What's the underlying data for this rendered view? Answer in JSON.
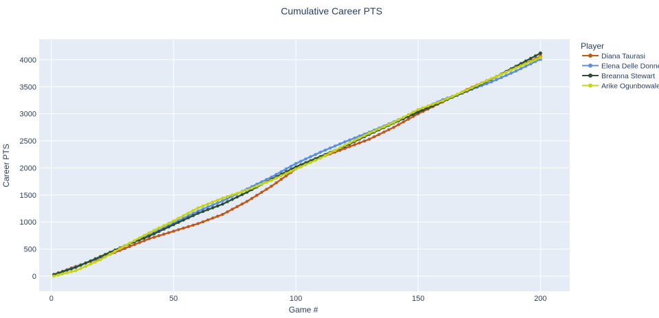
{
  "chart_data": {
    "type": "line",
    "title": "Cumulative Career PTS",
    "xlabel": "Game #",
    "ylabel": "Career PTS",
    "xlim": [
      -5,
      212
    ],
    "ylim": [
      -280,
      4380
    ],
    "x_ticks": [
      0,
      50,
      100,
      150,
      200
    ],
    "y_ticks": [
      0,
      500,
      1000,
      1500,
      2000,
      2500,
      3000,
      3500,
      4000
    ],
    "grid": true,
    "legend": {
      "title": "Player",
      "placement": "right"
    },
    "plot_bg": "#e5ecf6",
    "series": [
      {
        "name": "Diana Taurasi",
        "color": "#c0571b",
        "x": [
          1,
          10,
          20,
          30,
          40,
          50,
          60,
          70,
          80,
          90,
          100,
          110,
          120,
          130,
          140,
          150,
          160,
          170,
          180,
          190,
          200
        ],
        "y": [
          25,
          180,
          330,
          510,
          690,
          830,
          970,
          1140,
          1380,
          1660,
          1980,
          2190,
          2360,
          2530,
          2750,
          3000,
          3220,
          3450,
          3650,
          3850,
          4060
        ]
      },
      {
        "name": "Elena Delle Donne",
        "color": "#5b8fdb",
        "x": [
          1,
          10,
          20,
          30,
          40,
          50,
          60,
          70,
          80,
          90,
          100,
          110,
          120,
          130,
          140,
          150,
          160,
          170,
          180,
          190,
          200
        ],
        "y": [
          20,
          170,
          350,
          560,
          760,
          980,
          1200,
          1390,
          1610,
          1830,
          2080,
          2290,
          2480,
          2660,
          2850,
          3060,
          3260,
          3420,
          3590,
          3790,
          4010
        ]
      },
      {
        "name": "Breanna Stewart",
        "color": "#2f4f35",
        "x": [
          1,
          10,
          20,
          30,
          40,
          50,
          60,
          70,
          80,
          90,
          100,
          110,
          120,
          130,
          140,
          150,
          160,
          170,
          180,
          190,
          200
        ],
        "y": [
          30,
          160,
          360,
          560,
          740,
          950,
          1160,
          1330,
          1550,
          1790,
          2020,
          2210,
          2400,
          2620,
          2830,
          3030,
          3230,
          3420,
          3640,
          3880,
          4120
        ]
      },
      {
        "name": "Arike Ogunbowale",
        "color": "#c5d416",
        "x": [
          1,
          10,
          20,
          30,
          40,
          50,
          60,
          70,
          80,
          90,
          100,
          110,
          120,
          130,
          140,
          150,
          160,
          170,
          180,
          190,
          200
        ],
        "y": [
          0,
          100,
          300,
          560,
          800,
          1020,
          1260,
          1440,
          1590,
          1770,
          1980,
          2180,
          2420,
          2640,
          2840,
          3080,
          3240,
          3440,
          3650,
          3850,
          4040
        ]
      }
    ]
  }
}
